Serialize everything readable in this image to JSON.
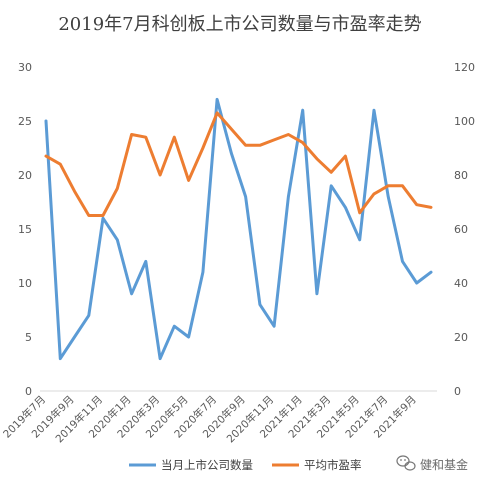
{
  "chart_data": {
    "type": "line",
    "title": "2019年7月科创板上市公司数量与市盈率走势",
    "x": [
      "2019年7月",
      "2019年8月",
      "2019年9月",
      "2019年10月",
      "2019年11月",
      "2019年12月",
      "2020年1月",
      "2020年2月",
      "2020年3月",
      "2020年4月",
      "2020年5月",
      "2020年6月",
      "2020年7月",
      "2020年8月",
      "2020年9月",
      "2020年10月",
      "2020年11月",
      "2020年12月",
      "2021年1月",
      "2021年2月",
      "2021年3月",
      "2021年4月",
      "2021年5月",
      "2021年6月",
      "2021年7月",
      "2021年8月",
      "2021年9月",
      "2021年10月"
    ],
    "xtick_labels": [
      "2019年7月",
      "2019年9月",
      "2019年11月",
      "2020年1月",
      "2020年3月",
      "2020年5月",
      "2020年7月",
      "2020年9月",
      "2020年11月",
      "2021年1月",
      "2021年3月",
      "2021年5月",
      "2021年7月",
      "2021年9月"
    ],
    "series": [
      {
        "name": "当月上市公司数量",
        "axis": "left",
        "color": "#5b9bd5",
        "values": [
          25,
          3,
          5,
          7,
          16,
          14,
          9,
          12,
          3,
          6,
          5,
          11,
          27,
          22,
          18,
          8,
          6,
          18,
          26,
          9,
          19,
          17,
          14,
          26,
          18,
          12,
          10,
          11
        ]
      },
      {
        "name": "平均市盈率",
        "axis": "right",
        "color": "#ed7d31",
        "values": [
          87,
          84,
          74,
          65,
          65,
          75,
          95,
          94,
          80,
          94,
          78,
          90,
          103,
          97,
          91,
          91,
          93,
          95,
          92,
          86,
          81,
          87,
          66,
          73,
          76,
          76,
          69,
          68
        ]
      }
    ],
    "ylim_left": [
      0,
      30
    ],
    "yticks_left": [
      0,
      5,
      10,
      15,
      20,
      25,
      30
    ],
    "ylim_right": [
      0,
      120
    ],
    "yticks_right": [
      0,
      20,
      40,
      60,
      80,
      100,
      120
    ],
    "grid": false,
    "legend": "bottom"
  },
  "watermark": {
    "text": "健和基金",
    "icon": "wechat-icon"
  }
}
